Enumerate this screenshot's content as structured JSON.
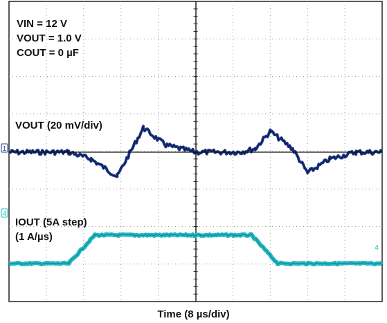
{
  "chart_data": {
    "type": "line",
    "title": "",
    "xlabel": "Time (8 µs/div)",
    "ylabel": "",
    "grid": true,
    "divisions": {
      "x": 10,
      "y": 8
    },
    "conditions": [
      "VIN = 12 V",
      "VOUT = 1.0 V",
      "COUT = 0 µF"
    ],
    "series": [
      {
        "name": "VOUT (20 mV/div)",
        "color": "#1f3a8a",
        "reference_marker": "1",
        "x_div": [
          0,
          1.6,
          2.2,
          2.9,
          3.6,
          4.2,
          5.0,
          6.2,
          6.6,
          7.0,
          7.6,
          8.0,
          8.6,
          9.3,
          10.0
        ],
        "y_div": [
          0,
          0,
          -0.1,
          -0.35,
          0.35,
          0.1,
          0,
          0,
          0.05,
          0.3,
          0.05,
          -0.3,
          -0.1,
          0,
          0
        ]
      },
      {
        "name": "IOUT (5A step)",
        "name_line2": "(1 A/µs)",
        "color": "#22b8c4",
        "reference_marker": "4",
        "x_div": [
          0,
          1.6,
          2.3,
          5.0,
          6.5,
          7.2,
          10.0
        ],
        "y_div": [
          0,
          0,
          1.0,
          1.0,
          1.0,
          0,
          0
        ]
      }
    ]
  }
}
